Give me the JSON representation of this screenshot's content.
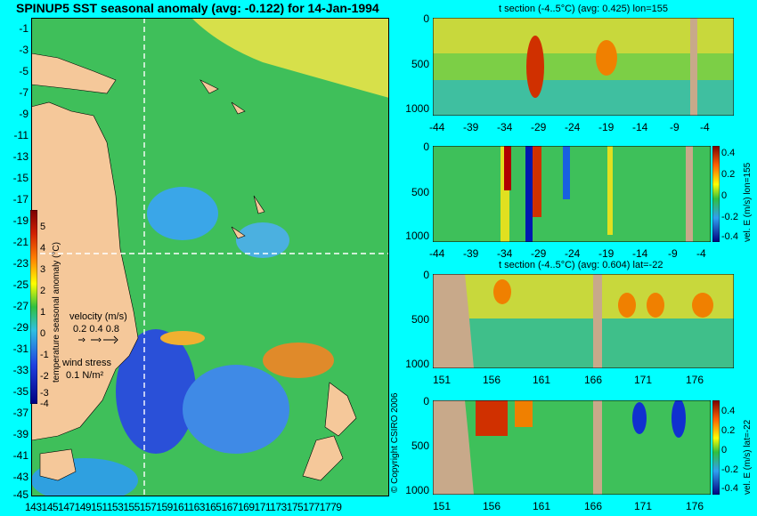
{
  "map": {
    "title": "SPINUP5 SST seasonal anomaly (avg: -0.122) for 14-Jan-1994",
    "y_ticks": [
      "-1",
      "-3",
      "-5",
      "-7",
      "-9",
      "-11",
      "-13",
      "-15",
      "-17",
      "-19",
      "-21",
      "-23",
      "-25",
      "-27",
      "-29",
      "-31",
      "-33",
      "-35",
      "-37",
      "-39",
      "-41",
      "-43",
      "-45"
    ],
    "x_ticks_text": "1431451471491511531551571591611631651671691711731751771779",
    "colorbar": {
      "label": "temperature seasonal anomaly (°C)",
      "ticks": [
        "5",
        "4",
        "3",
        "2",
        "1",
        "0",
        "-1",
        "-2",
        "-3",
        "-4"
      ]
    },
    "velocity_legend": {
      "title": "velocity (m/s)",
      "values": "0.2 0.4 0.8"
    },
    "wind_legend": {
      "title": "wind stress",
      "value": "0.1 N/m²"
    },
    "copyright": "© Copyright CSIRO 2006"
  },
  "panels": [
    {
      "title": "t section (-4..5°C) (avg: 0.425) lon=155",
      "x_ticks": [
        "-44",
        "-39",
        "-34",
        "-29",
        "-24",
        "-19",
        "-14",
        "-9",
        "-4"
      ],
      "y_ticks": [
        "0",
        "500",
        "1000"
      ]
    },
    {
      "title": "",
      "x_ticks": [
        "-44",
        "-39",
        "-34",
        "-29",
        "-24",
        "-19",
        "-14",
        "-9",
        "-4"
      ],
      "y_ticks": [
        "0",
        "500",
        "1000"
      ],
      "colorbar_label": "vel. E (m/s) lon=155",
      "colorbar_ticks": [
        "0.4",
        "0.2",
        "0",
        "-0.2",
        "-0.4"
      ]
    },
    {
      "title": "t section (-4..5°C) (avg: 0.604) lat=-22",
      "x_ticks": [
        "151",
        "156",
        "161",
        "166",
        "171",
        "176"
      ],
      "y_ticks": [
        "0",
        "500",
        "1000"
      ]
    },
    {
      "title": "",
      "x_ticks": [
        "151",
        "156",
        "161",
        "166",
        "171",
        "176"
      ],
      "y_ticks": [
        "0",
        "500",
        "1000"
      ],
      "colorbar_label": "vel. E (m/s) lat=-22",
      "colorbar_ticks": [
        "0.4",
        "0.2",
        "0",
        "-0.2",
        "-0.4"
      ]
    }
  ],
  "chart_data": [
    {
      "type": "heatmap",
      "title": "SPINUP5 SST seasonal anomaly (avg: -0.122) for 14-Jan-1994",
      "ylim": [
        -45,
        0
      ],
      "xlim": [
        143,
        180
      ],
      "colorbar_range": [
        -4,
        5
      ],
      "section_lines": {
        "lon": 155,
        "lat": -22
      }
    },
    {
      "type": "heatmap",
      "title": "t section (-4..5°C) (avg: 0.425) lon=155",
      "xlim": [
        -45,
        0
      ],
      "ylim": [
        1050,
        0
      ]
    },
    {
      "type": "heatmap",
      "title": "",
      "xlim": [
        -45,
        0
      ],
      "ylim": [
        1050,
        0
      ],
      "colorbar_range": [
        -0.4,
        0.4
      ]
    },
    {
      "type": "heatmap",
      "title": "t section (-4..5°C) (avg: 0.604) lat=-22",
      "xlim": [
        150,
        180
      ],
      "ylim": [
        1050,
        0
      ]
    },
    {
      "type": "heatmap",
      "title": "",
      "xlim": [
        150,
        180
      ],
      "ylim": [
        1050,
        0
      ],
      "colorbar_range": [
        -0.4,
        0.4
      ]
    }
  ]
}
